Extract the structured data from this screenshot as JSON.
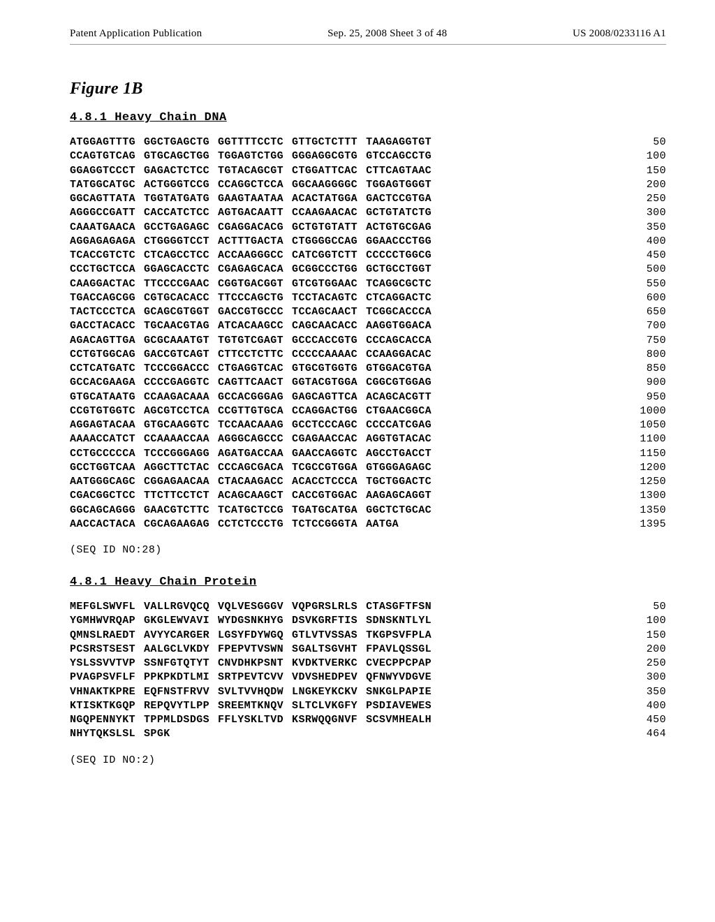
{
  "header": {
    "left": "Patent Application Publication",
    "center": "Sep. 25, 2008  Sheet 3 of 48",
    "right": "US 2008/0233116 A1"
  },
  "figure_label": "Figure 1B",
  "dna": {
    "title": "4.8.1 Heavy Chain DNA",
    "rows": [
      {
        "groups": [
          "ATGGAGTTTG",
          "GGCTGAGCTG",
          "GGTTTTCCTC",
          "GTTGCTCTTT",
          "TAAGAGGTGT"
        ],
        "num": "50"
      },
      {
        "groups": [
          "CCAGTGTCAG",
          "GTGCAGCTGG",
          "TGGAGTCTGG",
          "GGGAGGCGTG",
          "GTCCAGCCTG"
        ],
        "num": "100"
      },
      {
        "groups": [
          "GGAGGTCCCT",
          "GAGACTCTCC",
          "TGTACAGCGT",
          "CTGGATTCAC",
          "CTTCAGTAAC"
        ],
        "num": "150"
      },
      {
        "groups": [
          "TATGGCATGC",
          "ACTGGGTCCG",
          "CCAGGCTCCA",
          "GGCAAGGGGC",
          "TGGAGTGGGT"
        ],
        "num": "200"
      },
      {
        "groups": [
          "GGCAGTTATA",
          "TGGTATGATG",
          "GAAGTAATAA",
          "ACACTATGGA",
          "GACTCCGTGA"
        ],
        "num": "250"
      },
      {
        "groups": [
          "AGGGCCGATT",
          "CACCATCTCC",
          "AGTGACAATT",
          "CCAAGAACAC",
          "GCTGTATCTG"
        ],
        "num": "300"
      },
      {
        "groups": [
          "CAAATGAACA",
          "GCCTGAGAGC",
          "CGAGGACACG",
          "GCTGTGTATT",
          "ACTGTGCGAG"
        ],
        "num": "350"
      },
      {
        "groups": [
          "AGGAGAGAGA",
          "CTGGGGTCCT",
          "ACTTTGACTA",
          "CTGGGGCCAG",
          "GGAACCCTGG"
        ],
        "num": "400"
      },
      {
        "groups": [
          "TCACCGTCTC",
          "CTCAGCCTCC",
          "ACCAAGGGCC",
          "CATCGGTCTT",
          "CCCCCTGGCG"
        ],
        "num": "450"
      },
      {
        "groups": [
          "CCCTGCTCCA",
          "GGAGCACCTC",
          "CGAGAGCACA",
          "GCGGCCCTGG",
          "GCTGCCTGGT"
        ],
        "num": "500"
      },
      {
        "groups": [
          "CAAGGACTAC",
          "TTCCCCGAAC",
          "CGGTGACGGT",
          "GTCGTGGAAC",
          "TCAGGCGCTC"
        ],
        "num": "550"
      },
      {
        "groups": [
          "TGACCAGCGG",
          "CGTGCACACC",
          "TTCCCAGCTG",
          "TCCTACAGTC",
          "CTCAGGACTC"
        ],
        "num": "600"
      },
      {
        "groups": [
          "TACTCCCTCA",
          "GCAGCGTGGT",
          "GACCGTGCCC",
          "TCCAGCAACT",
          "TCGGCACCCA"
        ],
        "num": "650"
      },
      {
        "groups": [
          "GACCTACACC",
          "TGCAACGTAG",
          "ATCACAAGCC",
          "CAGCAACACC",
          "AAGGTGGACA"
        ],
        "num": "700"
      },
      {
        "groups": [
          "AGACAGTTGA",
          "GCGCAAATGT",
          "TGTGTCGAGT",
          "GCCCACCGTG",
          "CCCAGCACCA"
        ],
        "num": "750"
      },
      {
        "groups": [
          "CCTGTGGCAG",
          "GACCGTCAGT",
          "CTTCCTCTTC",
          "CCCCCAAAAC",
          "CCAAGGACAC"
        ],
        "num": "800"
      },
      {
        "groups": [
          "CCTCATGATC",
          "TCCCGGACCC",
          "CTGAGGTCAC",
          "GTGCGTGGTG",
          "GTGGACGTGA"
        ],
        "num": "850"
      },
      {
        "groups": [
          "GCCACGAAGA",
          "CCCCGAGGTC",
          "CAGTTCAACT",
          "GGTACGTGGA",
          "CGGCGTGGAG"
        ],
        "num": "900"
      },
      {
        "groups": [
          "GTGCATAATG",
          "CCAAGACAAA",
          "GCCACGGGAG",
          "GAGCAGTTCA",
          "ACAGCACGTT"
        ],
        "num": "950"
      },
      {
        "groups": [
          "CCGTGTGGTC",
          "AGCGTCCTCA",
          "CCGTTGTGCA",
          "CCAGGACTGG",
          "CTGAACGGCA"
        ],
        "num": "1000"
      },
      {
        "groups": [
          "AGGAGTACAA",
          "GTGCAAGGTC",
          "TCCAACAAAG",
          "GCCTCCCAGC",
          "CCCCATCGAG"
        ],
        "num": "1050"
      },
      {
        "groups": [
          "AAAACCATCT",
          "CCAAAACCAA",
          "AGGGCAGCCC",
          "CGAGAACCAC",
          "AGGTGTACAC"
        ],
        "num": "1100"
      },
      {
        "groups": [
          "CCTGCCCCCA",
          "TCCCGGGAGG",
          "AGATGACCAA",
          "GAACCAGGTC",
          "AGCCTGACCT"
        ],
        "num": "1150"
      },
      {
        "groups": [
          "GCCTGGTCAA",
          "AGGCTTCTAC",
          "CCCAGCGACA",
          "TCGCCGTGGA",
          "GTGGGAGAGC"
        ],
        "num": "1200"
      },
      {
        "groups": [
          "AATGGGCAGC",
          "CGGAGAACAA",
          "CTACAAGACC",
          "ACACCTCCCA",
          "TGCTGGACTC"
        ],
        "num": "1250"
      },
      {
        "groups": [
          "CGACGGCTCC",
          "TTCTTCCTCT",
          "ACAGCAAGCT",
          "CACCGTGGAC",
          "AAGAGCAGGT"
        ],
        "num": "1300"
      },
      {
        "groups": [
          "GGCAGCAGGG",
          "GAACGTCTTC",
          "TCATGCTCCG",
          "TGATGCATGA",
          "GGCTCTGCAC"
        ],
        "num": "1350"
      },
      {
        "groups": [
          "AACCACTACA",
          "CGCAGAAGAG",
          "CCTCTCCCTG",
          "TCTCCGGGTA",
          "AATGA"
        ],
        "num": "1395"
      }
    ],
    "seq_id": "(SEQ ID NO:28)"
  },
  "protein": {
    "title": "4.8.1 Heavy Chain Protein",
    "rows": [
      {
        "groups": [
          "MEFGLSWVFL",
          "VALLRGVQCQ",
          "VQLVESGGGV",
          "VQPGRSLRLS",
          "CTASGFTFSN"
        ],
        "num": "50"
      },
      {
        "groups": [
          "YGMHWVRQAP",
          "GKGLEWVAVI",
          "WYDGSNKHYG",
          "DSVKGRFTIS",
          "SDNSKNTLYL"
        ],
        "num": "100"
      },
      {
        "groups": [
          "QMNSLRAEDT",
          "AVYYCARGER",
          "LGSYFDYWGQ",
          "GTLVTVSSAS",
          "TKGPSVFPLA"
        ],
        "num": "150"
      },
      {
        "groups": [
          "PCSRSTSEST",
          "AALGCLVKDY",
          "FPEPVTVSWN",
          "SGALTSGVHT",
          "FPAVLQSSGL"
        ],
        "num": "200"
      },
      {
        "groups": [
          "YSLSSVVTVP",
          "SSNFGTQTYT",
          "CNVDHKPSNT",
          "KVDKTVERKC",
          "CVECPPCPAP"
        ],
        "num": "250"
      },
      {
        "groups": [
          "PVAGPSVFLF",
          "PPKPKDTLMI",
          "SRTPEVTCVV",
          "VDVSHEDPEV",
          "QFNWYVDGVE"
        ],
        "num": "300"
      },
      {
        "groups": [
          "VHNAKTKPRE",
          "EQFNSTFRVV",
          "SVLTVVHQDW",
          "LNGKEYKCKV",
          "SNKGLPAPIE"
        ],
        "num": "350"
      },
      {
        "groups": [
          "KTISKTKGQP",
          "REPQVYTLPP",
          "SREEMTKNQV",
          "SLTCLVKGFY",
          "PSDIAVEWES"
        ],
        "num": "400"
      },
      {
        "groups": [
          "NGQPENNYKT",
          "TPPMLDSDGS",
          "FFLYSKLTVD",
          "KSRWQQGNVF",
          "SCSVMHEALH"
        ],
        "num": "450"
      },
      {
        "groups": [
          "NHYTQKSLSL",
          "SPGK"
        ],
        "num": "464"
      }
    ],
    "seq_id": "(SEQ ID NO:2)"
  }
}
